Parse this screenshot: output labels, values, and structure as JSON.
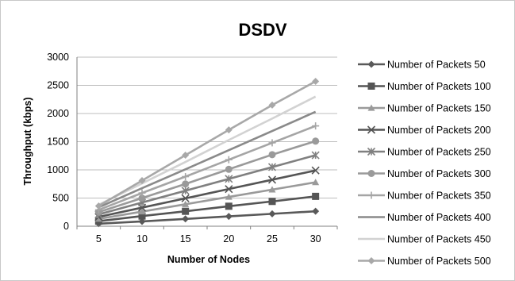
{
  "chart_data": {
    "type": "line",
    "title": "DSDV",
    "xlabel": "Number of Nodes",
    "ylabel": "Throughput (kbps)",
    "x": [
      5,
      10,
      15,
      20,
      25,
      30
    ],
    "ylim": [
      0,
      3000
    ],
    "yticks": [
      0,
      500,
      1000,
      1500,
      2000,
      2500,
      3000
    ],
    "grid": true,
    "legend_position": "right",
    "series": [
      {
        "name": "Number of Packets 50",
        "values": [
          45,
          85,
          130,
          175,
          220,
          265
        ],
        "color": "#595959",
        "marker": "diamond"
      },
      {
        "name": "Number of Packets 100",
        "values": [
          90,
          180,
          265,
          355,
          440,
          530
        ],
        "color": "#555555",
        "marker": "square"
      },
      {
        "name": "Number of Packets 150",
        "values": [
          130,
          260,
          390,
          520,
          650,
          780
        ],
        "color": "#9a9a9a",
        "marker": "triangle"
      },
      {
        "name": "Number of Packets 200",
        "values": [
          165,
          330,
          495,
          660,
          825,
          990
        ],
        "color": "#555555",
        "marker": "x"
      },
      {
        "name": "Number of Packets 250",
        "values": [
          210,
          420,
          630,
          840,
          1050,
          1260
        ],
        "color": "#808080",
        "marker": "star"
      },
      {
        "name": "Number of Packets 300",
        "values": [
          250,
          500,
          750,
          1010,
          1270,
          1510
        ],
        "color": "#9a9a9a",
        "marker": "circle"
      },
      {
        "name": "Number of Packets 350",
        "values": [
          290,
          590,
          880,
          1180,
          1480,
          1780
        ],
        "color": "#a5a5a5",
        "marker": "plus"
      },
      {
        "name": "Number of Packets 400",
        "values": [
          335,
          675,
          1010,
          1350,
          1690,
          2030
        ],
        "color": "#8a8a8a",
        "marker": "none"
      },
      {
        "name": "Number of Packets 450",
        "values": [
          380,
          760,
          1140,
          1530,
          1910,
          2300
        ],
        "color": "#d2d2d2",
        "marker": "none"
      },
      {
        "name": "Number of Packets 500",
        "values": [
          360,
          810,
          1260,
          1710,
          2150,
          2570
        ],
        "color": "#a8a8a8",
        "marker": "diamond"
      }
    ]
  }
}
